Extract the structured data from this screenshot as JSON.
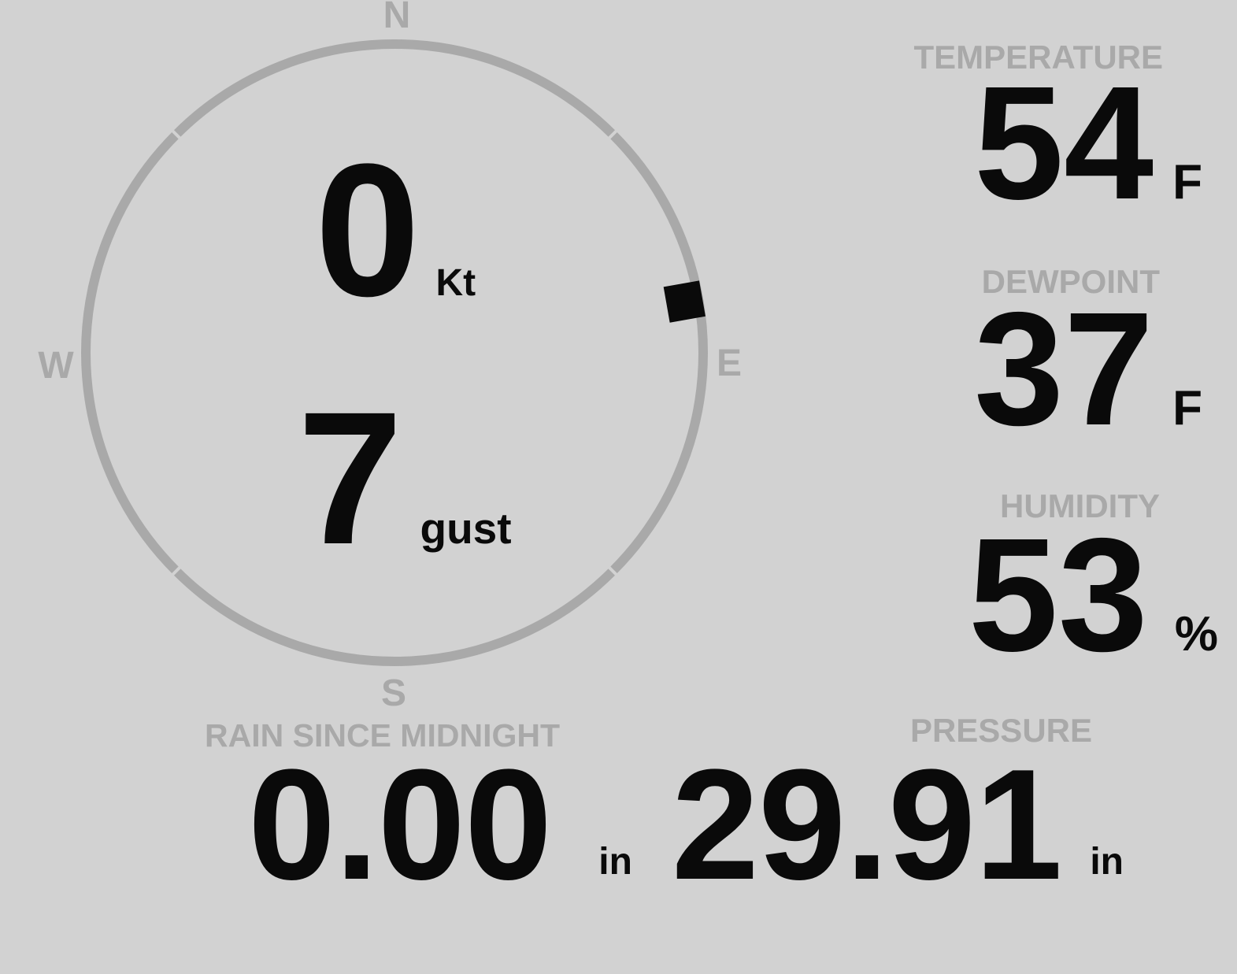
{
  "colors": {
    "background": "#d2d2d2",
    "value_text": "#0a0a0a",
    "muted_text": "#a9a9a9"
  },
  "wind": {
    "compass": {
      "north": "N",
      "east": "E",
      "south": "S",
      "west": "W"
    },
    "direction_deg": 80,
    "speed": {
      "value": "0",
      "unit": "Kt"
    },
    "gust": {
      "value": "7",
      "unit": "gust"
    }
  },
  "temperature": {
    "label": "TEMPERATURE",
    "value": "54",
    "unit": "F"
  },
  "dewpoint": {
    "label": "DEWPOINT",
    "value": "37",
    "unit": "F"
  },
  "humidity": {
    "label": "HUMIDITY",
    "value": "53",
    "unit": "%"
  },
  "rain": {
    "label": "RAIN SINCE MIDNIGHT",
    "value": "0.00",
    "unit": "in"
  },
  "pressure": {
    "label": "PRESSURE",
    "value": "29.91",
    "unit": "in"
  }
}
